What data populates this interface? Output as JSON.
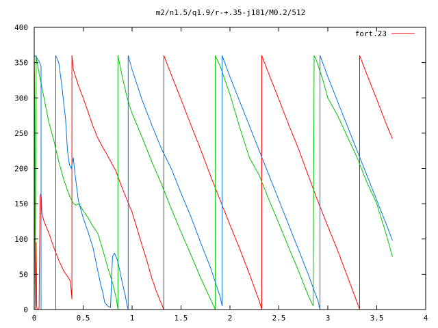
{
  "chart_data": {
    "type": "line",
    "title": "m2/n1.5/q1.9/r-+.35-j181/M0.2/512",
    "xlabel": "",
    "ylabel": "",
    "xlim": [
      0,
      4
    ],
    "ylim": [
      0,
      400
    ],
    "x_ticks": [
      0,
      0.5,
      1,
      1.5,
      2,
      2.5,
      3,
      3.5,
      4
    ],
    "x_tick_labels": [
      "0",
      "0.5",
      "1",
      "1.5",
      "2",
      "2.5",
      "3",
      "3.5",
      "4"
    ],
    "y_ticks": [
      0,
      50,
      100,
      150,
      200,
      250,
      300,
      350,
      400
    ],
    "y_tick_labels": [
      "0",
      "50",
      "100",
      "150",
      "200",
      "250",
      "300",
      "350",
      "400"
    ],
    "grid": false,
    "legend_position": "top-right",
    "series": [
      {
        "name": "fort.23",
        "color": "#ff0000",
        "points": [
          [
            0.0,
            360
          ],
          [
            0.004,
            300
          ],
          [
            0.008,
            100
          ],
          [
            0.012,
            0
          ],
          [
            0.02,
            95
          ],
          [
            0.025,
            5
          ],
          [
            0.03,
            0
          ],
          [
            0.04,
            0
          ],
          [
            0.05,
            2
          ],
          [
            0.06,
            160
          ],
          [
            0.07,
            165
          ],
          [
            0.08,
            135
          ],
          [
            0.1,
            125
          ],
          [
            0.15,
            108
          ],
          [
            0.2,
            88
          ],
          [
            0.25,
            70
          ],
          [
            0.3,
            55
          ],
          [
            0.35,
            45
          ],
          [
            0.37,
            40
          ],
          [
            0.385,
            15
          ],
          [
            0.385,
            360
          ],
          [
            0.4,
            340
          ],
          [
            0.45,
            318
          ],
          [
            0.5,
            300
          ],
          [
            0.55,
            280
          ],
          [
            0.6,
            260
          ],
          [
            0.65,
            243
          ],
          [
            0.7,
            230
          ],
          [
            0.75,
            218
          ],
          [
            0.8,
            205
          ],
          [
            0.83,
            198
          ],
          [
            0.87,
            183
          ],
          [
            0.9,
            172
          ],
          [
            0.95,
            155
          ],
          [
            1.0,
            138
          ],
          [
            1.05,
            115
          ],
          [
            1.1,
            92
          ],
          [
            1.15,
            70
          ],
          [
            1.2,
            45
          ],
          [
            1.25,
            25
          ],
          [
            1.3,
            8
          ],
          [
            1.325,
            0
          ],
          [
            1.325,
            360
          ],
          [
            1.4,
            333
          ],
          [
            1.5,
            298
          ],
          [
            1.6,
            262
          ],
          [
            1.7,
            227
          ],
          [
            1.8,
            190
          ],
          [
            1.9,
            155
          ],
          [
            2.0,
            120
          ],
          [
            2.1,
            86
          ],
          [
            2.2,
            50
          ],
          [
            2.3,
            12
          ],
          [
            2.325,
            0
          ],
          [
            2.325,
            360
          ],
          [
            2.4,
            333
          ],
          [
            2.5,
            298
          ],
          [
            2.6,
            262
          ],
          [
            2.7,
            228
          ],
          [
            2.8,
            190
          ],
          [
            2.9,
            153
          ],
          [
            3.0,
            118
          ],
          [
            3.1,
            84
          ],
          [
            3.2,
            47
          ],
          [
            3.3,
            10
          ],
          [
            3.325,
            0
          ],
          [
            3.325,
            360
          ],
          [
            3.4,
            333
          ],
          [
            3.5,
            298
          ],
          [
            3.6,
            262
          ],
          [
            3.66,
            242
          ]
        ]
      },
      {
        "name": "",
        "color": "#00c000",
        "points": [
          [
            0.0,
            360
          ],
          [
            0.005,
            250
          ],
          [
            0.01,
            20
          ],
          [
            0.02,
            360
          ],
          [
            0.03,
            350
          ],
          [
            0.05,
            335
          ],
          [
            0.1,
            300
          ],
          [
            0.15,
            265
          ],
          [
            0.2,
            240
          ],
          [
            0.25,
            210
          ],
          [
            0.3,
            185
          ],
          [
            0.35,
            165
          ],
          [
            0.4,
            150
          ],
          [
            0.43,
            148
          ],
          [
            0.45,
            150
          ],
          [
            0.48,
            145
          ],
          [
            0.5,
            140
          ],
          [
            0.55,
            130
          ],
          [
            0.6,
            118
          ],
          [
            0.65,
            108
          ],
          [
            0.7,
            85
          ],
          [
            0.75,
            60
          ],
          [
            0.8,
            38
          ],
          [
            0.84,
            15
          ],
          [
            0.855,
            0
          ],
          [
            0.855,
            360
          ],
          [
            0.9,
            330
          ],
          [
            0.95,
            300
          ],
          [
            1.0,
            278
          ],
          [
            1.1,
            245
          ],
          [
            1.2,
            210
          ],
          [
            1.3,
            178
          ],
          [
            1.4,
            143
          ],
          [
            1.5,
            110
          ],
          [
            1.6,
            78
          ],
          [
            1.7,
            45
          ],
          [
            1.8,
            15
          ],
          [
            1.85,
            0
          ],
          [
            1.85,
            360
          ],
          [
            1.9,
            345
          ],
          [
            2.0,
            305
          ],
          [
            2.1,
            258
          ],
          [
            2.2,
            215
          ],
          [
            2.3,
            190
          ],
          [
            2.4,
            155
          ],
          [
            2.5,
            122
          ],
          [
            2.6,
            88
          ],
          [
            2.7,
            55
          ],
          [
            2.8,
            20
          ],
          [
            2.85,
            5
          ],
          [
            2.86,
            360
          ],
          [
            2.88,
            355
          ],
          [
            2.95,
            325
          ],
          [
            3.0,
            300
          ],
          [
            3.1,
            275
          ],
          [
            3.2,
            245
          ],
          [
            3.3,
            215
          ],
          [
            3.4,
            180
          ],
          [
            3.5,
            150
          ],
          [
            3.6,
            105
          ],
          [
            3.66,
            75
          ]
        ]
      },
      {
        "name": "",
        "color": "#0070e0",
        "points": [
          [
            0.0,
            360
          ],
          [
            0.02,
            358
          ],
          [
            0.05,
            352
          ],
          [
            0.07,
            345
          ],
          [
            0.07,
            0
          ],
          [
            0.07,
            0
          ],
          [
            0.22,
            0
          ],
          [
            0.22,
            360
          ],
          [
            0.25,
            350
          ],
          [
            0.28,
            320
          ],
          [
            0.32,
            270
          ],
          [
            0.34,
            225
          ],
          [
            0.36,
            205
          ],
          [
            0.38,
            200
          ],
          [
            0.39,
            210
          ],
          [
            0.4,
            215
          ],
          [
            0.41,
            200
          ],
          [
            0.45,
            155
          ],
          [
            0.5,
            130
          ],
          [
            0.55,
            110
          ],
          [
            0.6,
            88
          ],
          [
            0.65,
            55
          ],
          [
            0.68,
            35
          ],
          [
            0.7,
            25
          ],
          [
            0.72,
            10
          ],
          [
            0.75,
            5
          ],
          [
            0.78,
            3
          ],
          [
            0.8,
            75
          ],
          [
            0.82,
            80
          ],
          [
            0.85,
            70
          ],
          [
            0.88,
            52
          ],
          [
            0.9,
            38
          ],
          [
            0.93,
            20
          ],
          [
            0.95,
            5
          ],
          [
            0.96,
            0
          ],
          [
            0.96,
            360
          ],
          [
            1.0,
            340
          ],
          [
            1.1,
            298
          ],
          [
            1.2,
            262
          ],
          [
            1.3,
            228
          ],
          [
            1.4,
            200
          ],
          [
            1.5,
            165
          ],
          [
            1.6,
            132
          ],
          [
            1.7,
            95
          ],
          [
            1.8,
            60
          ],
          [
            1.9,
            18
          ],
          [
            1.92,
            5
          ],
          [
            1.92,
            360
          ],
          [
            2.0,
            330
          ],
          [
            2.1,
            295
          ],
          [
            2.2,
            260
          ],
          [
            2.3,
            225
          ],
          [
            2.4,
            190
          ],
          [
            2.5,
            155
          ],
          [
            2.6,
            120
          ],
          [
            2.7,
            85
          ],
          [
            2.8,
            50
          ],
          [
            2.9,
            12
          ],
          [
            2.92,
            0
          ],
          [
            2.92,
            360
          ],
          [
            3.0,
            330
          ],
          [
            3.1,
            295
          ],
          [
            3.2,
            260
          ],
          [
            3.3,
            225
          ],
          [
            3.4,
            190
          ],
          [
            3.5,
            155
          ],
          [
            3.6,
            120
          ],
          [
            3.66,
            98
          ]
        ]
      }
    ]
  }
}
